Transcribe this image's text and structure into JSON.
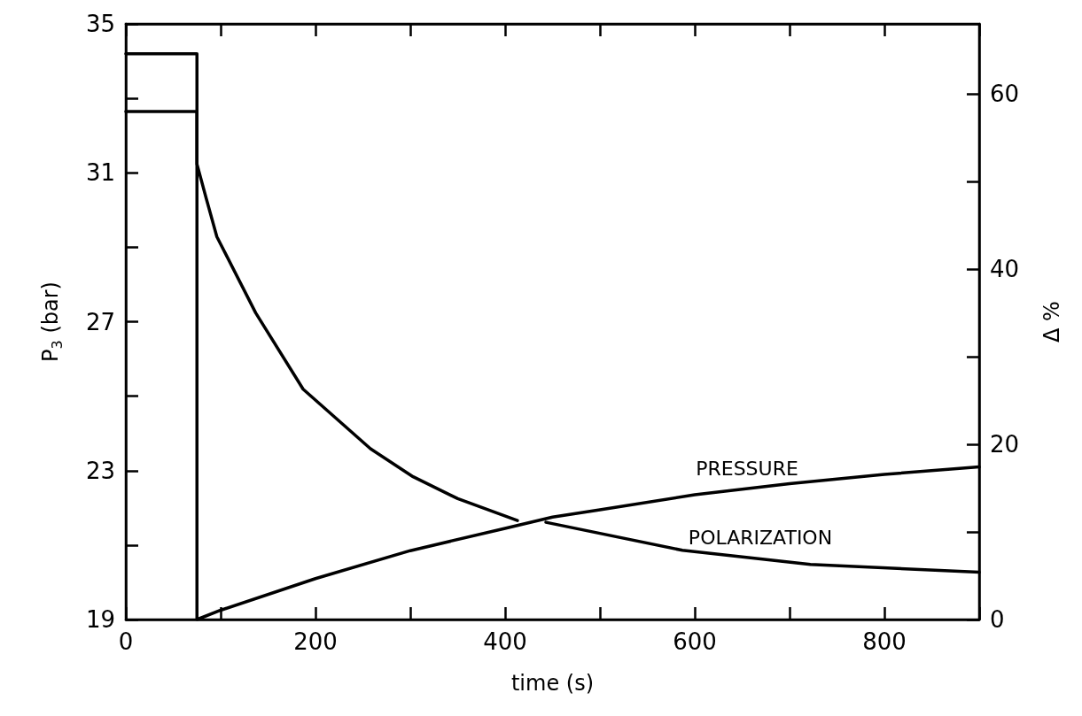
{
  "chart_data": {
    "type": "line",
    "xlabel": "time (s)",
    "ylabel": "P$_{3}$ (bar)",
    "y2label": "Δ %",
    "xlim": [
      0,
      900
    ],
    "xticks": [
      0,
      {
        "value": 100,
        "label": null
      },
      200,
      {
        "value": 300,
        "label": null
      },
      400,
      {
        "value": 500,
        "label": null
      },
      600,
      {
        "value": 700,
        "label": null
      },
      800,
      {
        "value": 900,
        "label": null
      }
    ],
    "ylim": [
      19,
      35
    ],
    "yticks": [
      19,
      {
        "value": 21,
        "label": null
      },
      23,
      {
        "value": 25,
        "label": null
      },
      27,
      {
        "value": 29,
        "label": null
      },
      31,
      {
        "value": 33,
        "label": null
      },
      35
    ],
    "y2lim": [
      0,
      68
    ],
    "y2ticks": [
      0,
      {
        "value": 10,
        "label": null
      },
      20,
      {
        "value": 30,
        "label": null
      },
      40,
      {
        "value": 50,
        "label": null
      },
      60
    ],
    "grid": false,
    "marker": "none",
    "line_style": "solid",
    "series": [
      {
        "color": "#000000",
        "x": [
          0,
          75,
          75,
          100,
          200,
          300,
          400,
          450,
          500,
          600,
          700,
          800,
          900
        ],
        "values": [
          34.2,
          34.2,
          19,
          19.25,
          20.1,
          20.85,
          21.45,
          21.75,
          21.95,
          22.35,
          22.65,
          22.9,
          23.1
        ]
      },
      {
        "color": "#000000",
        "axis": "y2",
        "x": [
          0,
          75,
          75,
          85,
          96,
          137,
          187,
          258,
          303,
          350,
          413,
          428,
          443,
          587,
          722,
          900
        ],
        "values": [
          58,
          58,
          52,
          48,
          43.7,
          35,
          26.3,
          19.5,
          16.3,
          13.8,
          11.3,
          null,
          11.1,
          7.9,
          6.3,
          5.4
        ]
      }
    ],
    "annotations": [
      "PRESSURE",
      "POLARIZATION"
    ]
  }
}
